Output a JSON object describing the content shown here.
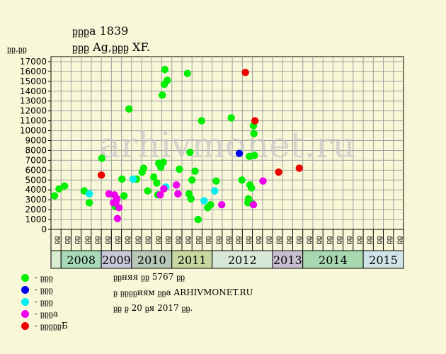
{
  "title_line1": "ᶈᶈᶈа 1839",
  "title_line2": "ᶈᶈᶈ Ag,ᶈᶈᶈ XF.",
  "y_unit_label": "ᶈᶈ,ᶈᶈ",
  "watermark": "arhivmonet.ru",
  "legend": [
    {
      "label": "- ᶈᶈᶈ",
      "color": "#00ee00"
    },
    {
      "label": "- ᶈᶈᶈ",
      "color": "#0000ee"
    },
    {
      "label": "- ᶈᶈᶈ",
      "color": "#00eeee"
    },
    {
      "label": "- ᶈᶈᶈа",
      "color": "#ee00ee"
    },
    {
      "label": "- ᶈᶈᶈᶈᶈБ",
      "color": "#ee0000"
    }
  ],
  "notes": [
    "ᶈᶈняя ᶈᶈ 5767 ᶈᶈ",
    "ᶈ ᶈᶈᶈᶈиям ᶈᶈа ARHIVMONET.RU",
    "ᶈᶈ ᶈ 20 ᶈя 2017 ᶈᶈ."
  ],
  "chart_data": {
    "type": "scatter",
    "y_ticks": [
      0,
      1000,
      2000,
      3000,
      4000,
      5000,
      6000,
      7000,
      8000,
      9000,
      10000,
      11000,
      12000,
      13000,
      14000,
      15000,
      16000,
      17000
    ],
    "ylim": [
      0,
      17500
    ],
    "grid": true,
    "x_quarter_labels": [
      "ᶈᶈ",
      "ᶈᶈ",
      "ᶈᶈ",
      "ᶈᶈ",
      "ᶈᶈ",
      "ᶈᶈ",
      "ᶈᶈ",
      "ᶈᶈ",
      "ᶈᶈ",
      "ᶈᶈ",
      "ᶈᶈ",
      "ᶈᶈ",
      "ᶈᶈ",
      "ᶈᶈ",
      "ᶈᶈ",
      "ᶈᶈ",
      "ᶈᶈ",
      "ᶈᶈ",
      "ᶈᶈ",
      "ᶈᶈ",
      "ᶈᶈ",
      "ᶈᶈ",
      "ᶈᶈ",
      "ᶈᶈ",
      "ᶈᶈ",
      "ᶈᶈ",
      "ᶈᶈ",
      "ᶈᶈ",
      "ᶈᶈ",
      "ᶈᶈ",
      "ᶈᶈ",
      "ᶈᶈ",
      "ᶈᶈ",
      "ᶈᶈ",
      "ᶈᶈ"
    ],
    "years": [
      {
        "label": "",
        "quarters": 1,
        "color": "#d8ecd0"
      },
      {
        "label": "2008",
        "quarters": 4,
        "color": "#a8d8b8"
      },
      {
        "label": "2009",
        "quarters": 3,
        "color": "#c8c8d8"
      },
      {
        "label": "2010",
        "quarters": 4,
        "color": "#b8c8b8"
      },
      {
        "label": "2011",
        "quarters": 4,
        "color": "#c8d8a0"
      },
      {
        "label": "2012",
        "quarters": 6,
        "color": "#d8e8d8"
      },
      {
        "label": "2013",
        "quarters": 3,
        "color": "#c8c0d0"
      },
      {
        "label": "2014",
        "quarters": 6,
        "color": "#a8d8b0"
      },
      {
        "label": "2015",
        "quarters": 4,
        "color": "#d0e4e8"
      }
    ],
    "series": [
      {
        "color": "#00ee00",
        "points": [
          [
            0.35,
            3400
          ],
          [
            0.8,
            4100
          ],
          [
            1.35,
            4400
          ],
          [
            3.3,
            3900
          ],
          [
            3.8,
            2700
          ],
          [
            5.05,
            7200
          ],
          [
            6.4,
            2300
          ],
          [
            7.05,
            5100
          ],
          [
            7.25,
            3400
          ],
          [
            7.75,
            12200
          ],
          [
            8.5,
            5100
          ],
          [
            9.05,
            5800
          ],
          [
            9.2,
            6200
          ],
          [
            9.6,
            3900
          ],
          [
            10.2,
            5300
          ],
          [
            10.5,
            4700
          ],
          [
            10.6,
            3500
          ],
          [
            10.7,
            6700
          ],
          [
            10.9,
            6300
          ],
          [
            11.05,
            13600
          ],
          [
            11.15,
            6800
          ],
          [
            11.25,
            14700
          ],
          [
            11.3,
            16200
          ],
          [
            11.55,
            15100
          ],
          [
            12.75,
            6100
          ],
          [
            13.55,
            15800
          ],
          [
            13.7,
            3600
          ],
          [
            13.8,
            7800
          ],
          [
            13.9,
            3100
          ],
          [
            14.0,
            5000
          ],
          [
            14.3,
            5900
          ],
          [
            14.6,
            1000
          ],
          [
            14.95,
            11000
          ],
          [
            15.55,
            2200
          ],
          [
            15.85,
            2500
          ],
          [
            16.4,
            4900
          ],
          [
            17.9,
            11300
          ],
          [
            18.95,
            5000
          ],
          [
            19.55,
            2700
          ],
          [
            19.6,
            3100
          ],
          [
            19.7,
            7400
          ],
          [
            19.75,
            4500
          ],
          [
            19.9,
            4200
          ],
          [
            20.0,
            2600
          ],
          [
            20.1,
            10500
          ],
          [
            20.15,
            9700
          ],
          [
            20.2,
            7500
          ]
        ]
      },
      {
        "color": "#0000ee",
        "points": [
          [
            18.7,
            7700
          ]
        ]
      },
      {
        "color": "#00eeee",
        "points": [
          [
            3.8,
            3600
          ],
          [
            8.15,
            5100
          ],
          [
            11.4,
            4300
          ],
          [
            15.2,
            2900
          ],
          [
            16.25,
            3900
          ]
        ]
      },
      {
        "color": "#ee00ee",
        "points": [
          [
            5.75,
            3600
          ],
          [
            6.2,
            2700
          ],
          [
            6.3,
            3500
          ],
          [
            6.45,
            2800
          ],
          [
            6.55,
            3100
          ],
          [
            6.6,
            1100
          ],
          [
            6.75,
            2200
          ],
          [
            10.85,
            3500
          ],
          [
            11.2,
            4100
          ],
          [
            12.45,
            4500
          ],
          [
            12.6,
            3600
          ],
          [
            16.95,
            2500
          ],
          [
            20.1,
            2500
          ],
          [
            21.05,
            4900
          ]
        ]
      },
      {
        "color": "#ee0000",
        "points": [
          [
            5.0,
            5500
          ],
          [
            19.3,
            15900
          ],
          [
            20.25,
            11000
          ],
          [
            22.6,
            5800
          ],
          [
            24.65,
            6200
          ]
        ]
      }
    ]
  }
}
